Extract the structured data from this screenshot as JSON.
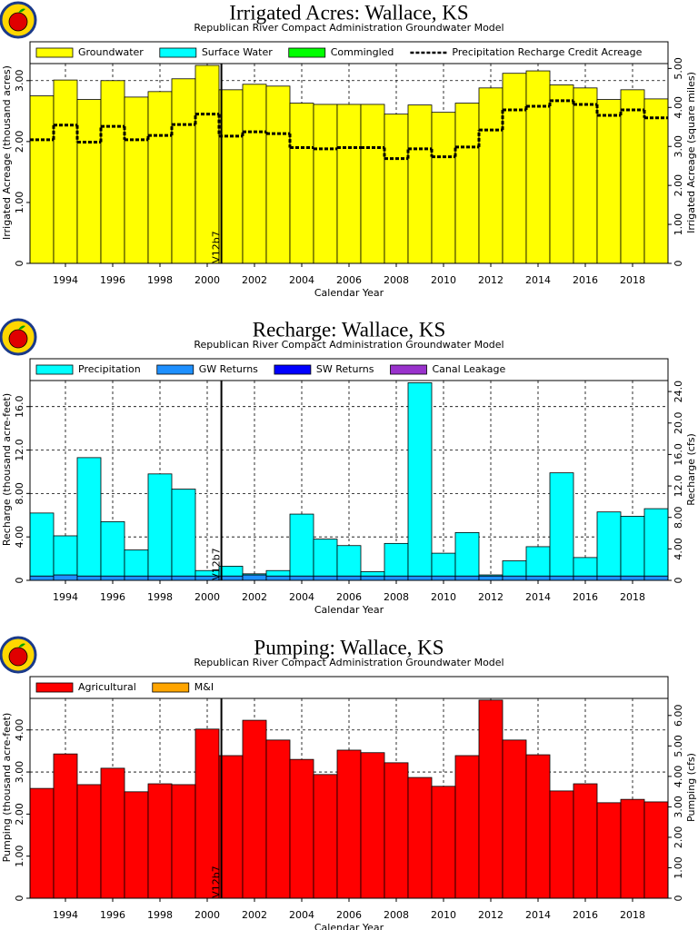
{
  "chart_data": [
    {
      "type": "bar",
      "title": "Irrigated Acres: Wallace, KS",
      "subtitle": "Republican River Compact Administration Groundwater Model",
      "xlabel": "Calendar Year",
      "ylabel": "Irrigated Acreage (thousand acres)",
      "y2label": "Irrigated Acreage (square miles)",
      "x": [
        1993,
        1994,
        1995,
        1996,
        1997,
        1998,
        1999,
        2000,
        2001,
        2002,
        2003,
        2004,
        2005,
        2006,
        2007,
        2008,
        2009,
        2010,
        2011,
        2012,
        2013,
        2014,
        2015,
        2016,
        2017,
        2018,
        2019
      ],
      "xlim": [
        1992.5,
        2019.5
      ],
      "xticks": [
        1994,
        1996,
        1998,
        2000,
        2002,
        2004,
        2006,
        2008,
        2010,
        2012,
        2014,
        2016,
        2018
      ],
      "ylim": [
        0,
        3.28
      ],
      "yticks": [
        0,
        {
          "value": 1,
          "label": "1.00"
        },
        {
          "value": 2,
          "label": "2.00"
        },
        {
          "value": 3,
          "label": "3.00"
        }
      ],
      "y2lim": [
        0,
        5.125
      ],
      "y2ticks": [
        0,
        {
          "value": 1,
          "label": "1.00"
        },
        {
          "value": 2,
          "label": "2.00"
        },
        {
          "value": 3,
          "label": "3.00"
        },
        {
          "value": 4,
          "label": "4.00"
        },
        {
          "value": 5,
          "label": "5.00"
        }
      ],
      "grid": true,
      "series": [
        {
          "name": "Groundwater",
          "color": "#ffff00",
          "type": "bar",
          "values": [
            2.75,
            3.01,
            2.69,
            3.0,
            2.73,
            2.82,
            3.03,
            3.25,
            2.85,
            2.94,
            2.91,
            2.63,
            2.61,
            2.61,
            2.61,
            2.45,
            2.6,
            2.48,
            2.63,
            2.88,
            3.12,
            3.16,
            2.93,
            2.88,
            2.69,
            2.85,
            2.7
          ]
        },
        {
          "name": "Surface Water",
          "color": "#00ffff",
          "type": "bar",
          "values": [
            0,
            0,
            0,
            0,
            0,
            0,
            0,
            0,
            0,
            0,
            0,
            0,
            0,
            0,
            0,
            0,
            0,
            0,
            0,
            0,
            0,
            0,
            0,
            0,
            0,
            0,
            0
          ]
        },
        {
          "name": "Commingled",
          "color": "#00ff00",
          "type": "bar",
          "values": [
            0,
            0,
            0,
            0,
            0,
            0,
            0,
            0,
            0,
            0,
            0,
            0,
            0,
            0,
            0,
            0,
            0,
            0,
            0,
            0,
            0,
            0,
            0,
            0,
            0,
            0,
            0
          ]
        },
        {
          "name": "Precipitation Recharge Credit Acreage",
          "color": "#000000",
          "type": "step",
          "values": [
            2.03,
            2.27,
            1.99,
            2.25,
            2.03,
            2.1,
            2.28,
            2.45,
            2.09,
            2.16,
            2.13,
            1.9,
            1.88,
            1.9,
            1.9,
            1.72,
            1.88,
            1.75,
            1.91,
            2.19,
            2.52,
            2.58,
            2.67,
            2.61,
            2.43,
            2.52,
            2.39
          ]
        }
      ],
      "annotations": [
        {
          "x": 2000.6,
          "label": "V12b7"
        }
      ]
    },
    {
      "type": "bar",
      "title": "Recharge: Wallace, KS",
      "subtitle": "Republican River Compact Administration Groundwater Model",
      "xlabel": "Calendar Year",
      "ylabel": "Recharge (thousand acre-feet)",
      "y2label": "Recharge (cfs)",
      "x": [
        1993,
        1994,
        1995,
        1996,
        1997,
        1998,
        1999,
        2000,
        2001,
        2002,
        2003,
        2004,
        2005,
        2006,
        2007,
        2008,
        2009,
        2010,
        2011,
        2012,
        2013,
        2014,
        2015,
        2016,
        2017,
        2018,
        2019
      ],
      "xlim": [
        1992.5,
        2019.5
      ],
      "xticks": [
        1994,
        1996,
        1998,
        2000,
        2002,
        2004,
        2006,
        2008,
        2010,
        2012,
        2014,
        2016,
        2018
      ],
      "ylim": [
        0,
        18.4
      ],
      "yticks": [
        0,
        {
          "value": 4,
          "label": "4.00"
        },
        {
          "value": 8,
          "label": "8.00"
        },
        {
          "value": 12,
          "label": "12.0"
        },
        {
          "value": 16,
          "label": "16.0"
        }
      ],
      "y2lim": [
        0,
        25.4
      ],
      "y2ticks": [
        0,
        {
          "value": 4,
          "label": "4.00"
        },
        {
          "value": 8,
          "label": "8.00"
        },
        {
          "value": 12,
          "label": "12.0"
        },
        {
          "value": 16,
          "label": "16.0"
        },
        {
          "value": 20,
          "label": "20.0"
        },
        {
          "value": 24,
          "label": "24.0"
        }
      ],
      "grid": true,
      "series": [
        {
          "name": "Precipitation",
          "color": "#00ffff",
          "type": "bar",
          "values": [
            5.8,
            3.6,
            10.9,
            5.0,
            2.4,
            9.4,
            8.0,
            0.5,
            0.9,
            0.1,
            0.5,
            5.7,
            3.4,
            2.8,
            0.4,
            3.0,
            17.8,
            2.1,
            4.0,
            0.1,
            1.4,
            2.7,
            9.5,
            1.7,
            5.9,
            5.5,
            6.2
          ]
        },
        {
          "name": "GW Returns",
          "color": "#1e90ff",
          "type": "bar",
          "values": [
            0.4,
            0.5,
            0.4,
            0.4,
            0.4,
            0.4,
            0.4,
            0.4,
            0.4,
            0.5,
            0.4,
            0.4,
            0.4,
            0.4,
            0.4,
            0.4,
            0.4,
            0.4,
            0.4,
            0.4,
            0.4,
            0.4,
            0.4,
            0.4,
            0.4,
            0.4,
            0.4
          ]
        },
        {
          "name": "SW Returns",
          "color": "#0000ff",
          "type": "bar",
          "values": [
            0,
            0,
            0,
            0,
            0,
            0,
            0,
            0,
            0,
            0,
            0,
            0,
            0,
            0,
            0,
            0,
            0,
            0,
            0,
            0,
            0,
            0,
            0,
            0,
            0,
            0,
            0
          ]
        },
        {
          "name": "Canal Leakage",
          "color": "#9932cc",
          "type": "bar",
          "values": [
            0,
            0,
            0,
            0,
            0,
            0,
            0,
            0,
            0,
            0,
            0,
            0,
            0,
            0,
            0,
            0,
            0,
            0,
            0,
            0,
            0,
            0,
            0,
            0,
            0,
            0,
            0
          ]
        }
      ],
      "annotations": [
        {
          "x": 2000.6,
          "label": "V12b7"
        }
      ]
    },
    {
      "type": "bar",
      "title": "Pumping: Wallace, KS",
      "subtitle": "Republican River Compact Administration Groundwater Model",
      "xlabel": "Calendar Year",
      "ylabel": "Pumping (thousand acre-feet)",
      "y2label": "Pumping (cfs)",
      "x": [
        1993,
        1994,
        1995,
        1996,
        1997,
        1998,
        1999,
        2000,
        2001,
        2002,
        2003,
        2004,
        2005,
        2006,
        2007,
        2008,
        2009,
        2010,
        2011,
        2012,
        2013,
        2014,
        2015,
        2016,
        2017,
        2018,
        2019
      ],
      "xlim": [
        1992.5,
        2019.5
      ],
      "xticks": [
        1994,
        1996,
        1998,
        2000,
        2002,
        2004,
        2006,
        2008,
        2010,
        2012,
        2014,
        2016,
        2018
      ],
      "ylim": [
        0,
        4.75
      ],
      "yticks": [
        0,
        {
          "value": 1,
          "label": "1.00"
        },
        {
          "value": 2,
          "label": "2.00"
        },
        {
          "value": 3,
          "label": "3.00"
        },
        {
          "value": 4,
          "label": "4.00"
        }
      ],
      "y2lim": [
        0,
        6.56
      ],
      "y2ticks": [
        0,
        {
          "value": 1,
          "label": "1.00"
        },
        {
          "value": 2,
          "label": "2.00"
        },
        {
          "value": 3,
          "label": "3.00"
        },
        {
          "value": 4,
          "label": "4.00"
        },
        {
          "value": 5,
          "label": "5.00"
        },
        {
          "value": 6,
          "label": "6.00"
        }
      ],
      "grid": true,
      "series": [
        {
          "name": "Agricultural",
          "color": "#ff0000",
          "type": "bar",
          "values": [
            2.61,
            3.43,
            2.7,
            3.09,
            2.53,
            2.72,
            2.7,
            4.02,
            3.39,
            4.23,
            3.76,
            3.3,
            2.94,
            3.52,
            3.46,
            3.22,
            2.87,
            2.66,
            3.39,
            4.71,
            3.76,
            3.41,
            2.55,
            2.72,
            2.27,
            2.35,
            2.29
          ]
        },
        {
          "name": "M&I",
          "color": "#ffa500",
          "type": "bar",
          "values": [
            0,
            0,
            0,
            0,
            0,
            0,
            0,
            0,
            0,
            0,
            0,
            0,
            0,
            0,
            0,
            0,
            0,
            0,
            0,
            0,
            0,
            0,
            0,
            0,
            0,
            0,
            0
          ]
        }
      ],
      "annotations": [
        {
          "x": 2000.6,
          "label": "V12b7"
        }
      ]
    }
  ]
}
